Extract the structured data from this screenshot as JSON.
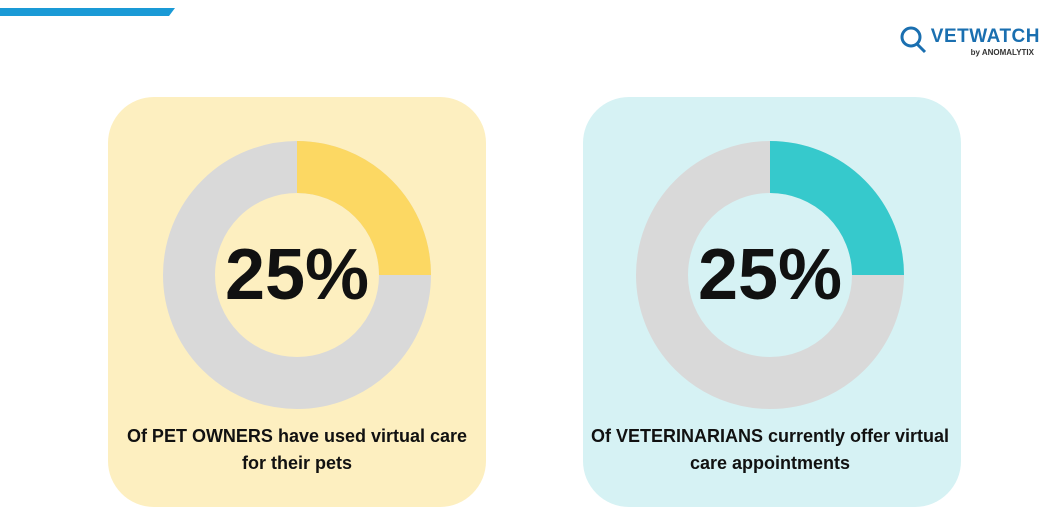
{
  "logo": {
    "name": "VETWATCH",
    "byline": "by ANOMALYTIX"
  },
  "chart_data": [
    {
      "type": "donut",
      "values": [
        25
      ],
      "value_labels": [
        "25%"
      ],
      "color": "#fcd863",
      "track_color": "#d9d9d9",
      "background": "#fdefc0",
      "caption": "Of PET OWNERS have used virtual care for their pets"
    },
    {
      "type": "donut",
      "values": [
        25
      ],
      "value_labels": [
        "25%"
      ],
      "color": "#36c9cc",
      "track_color": "#d9d9d9",
      "background": "#d6f2f4",
      "caption": "Of VETERINARIANS currently offer virtual care appointments"
    }
  ]
}
